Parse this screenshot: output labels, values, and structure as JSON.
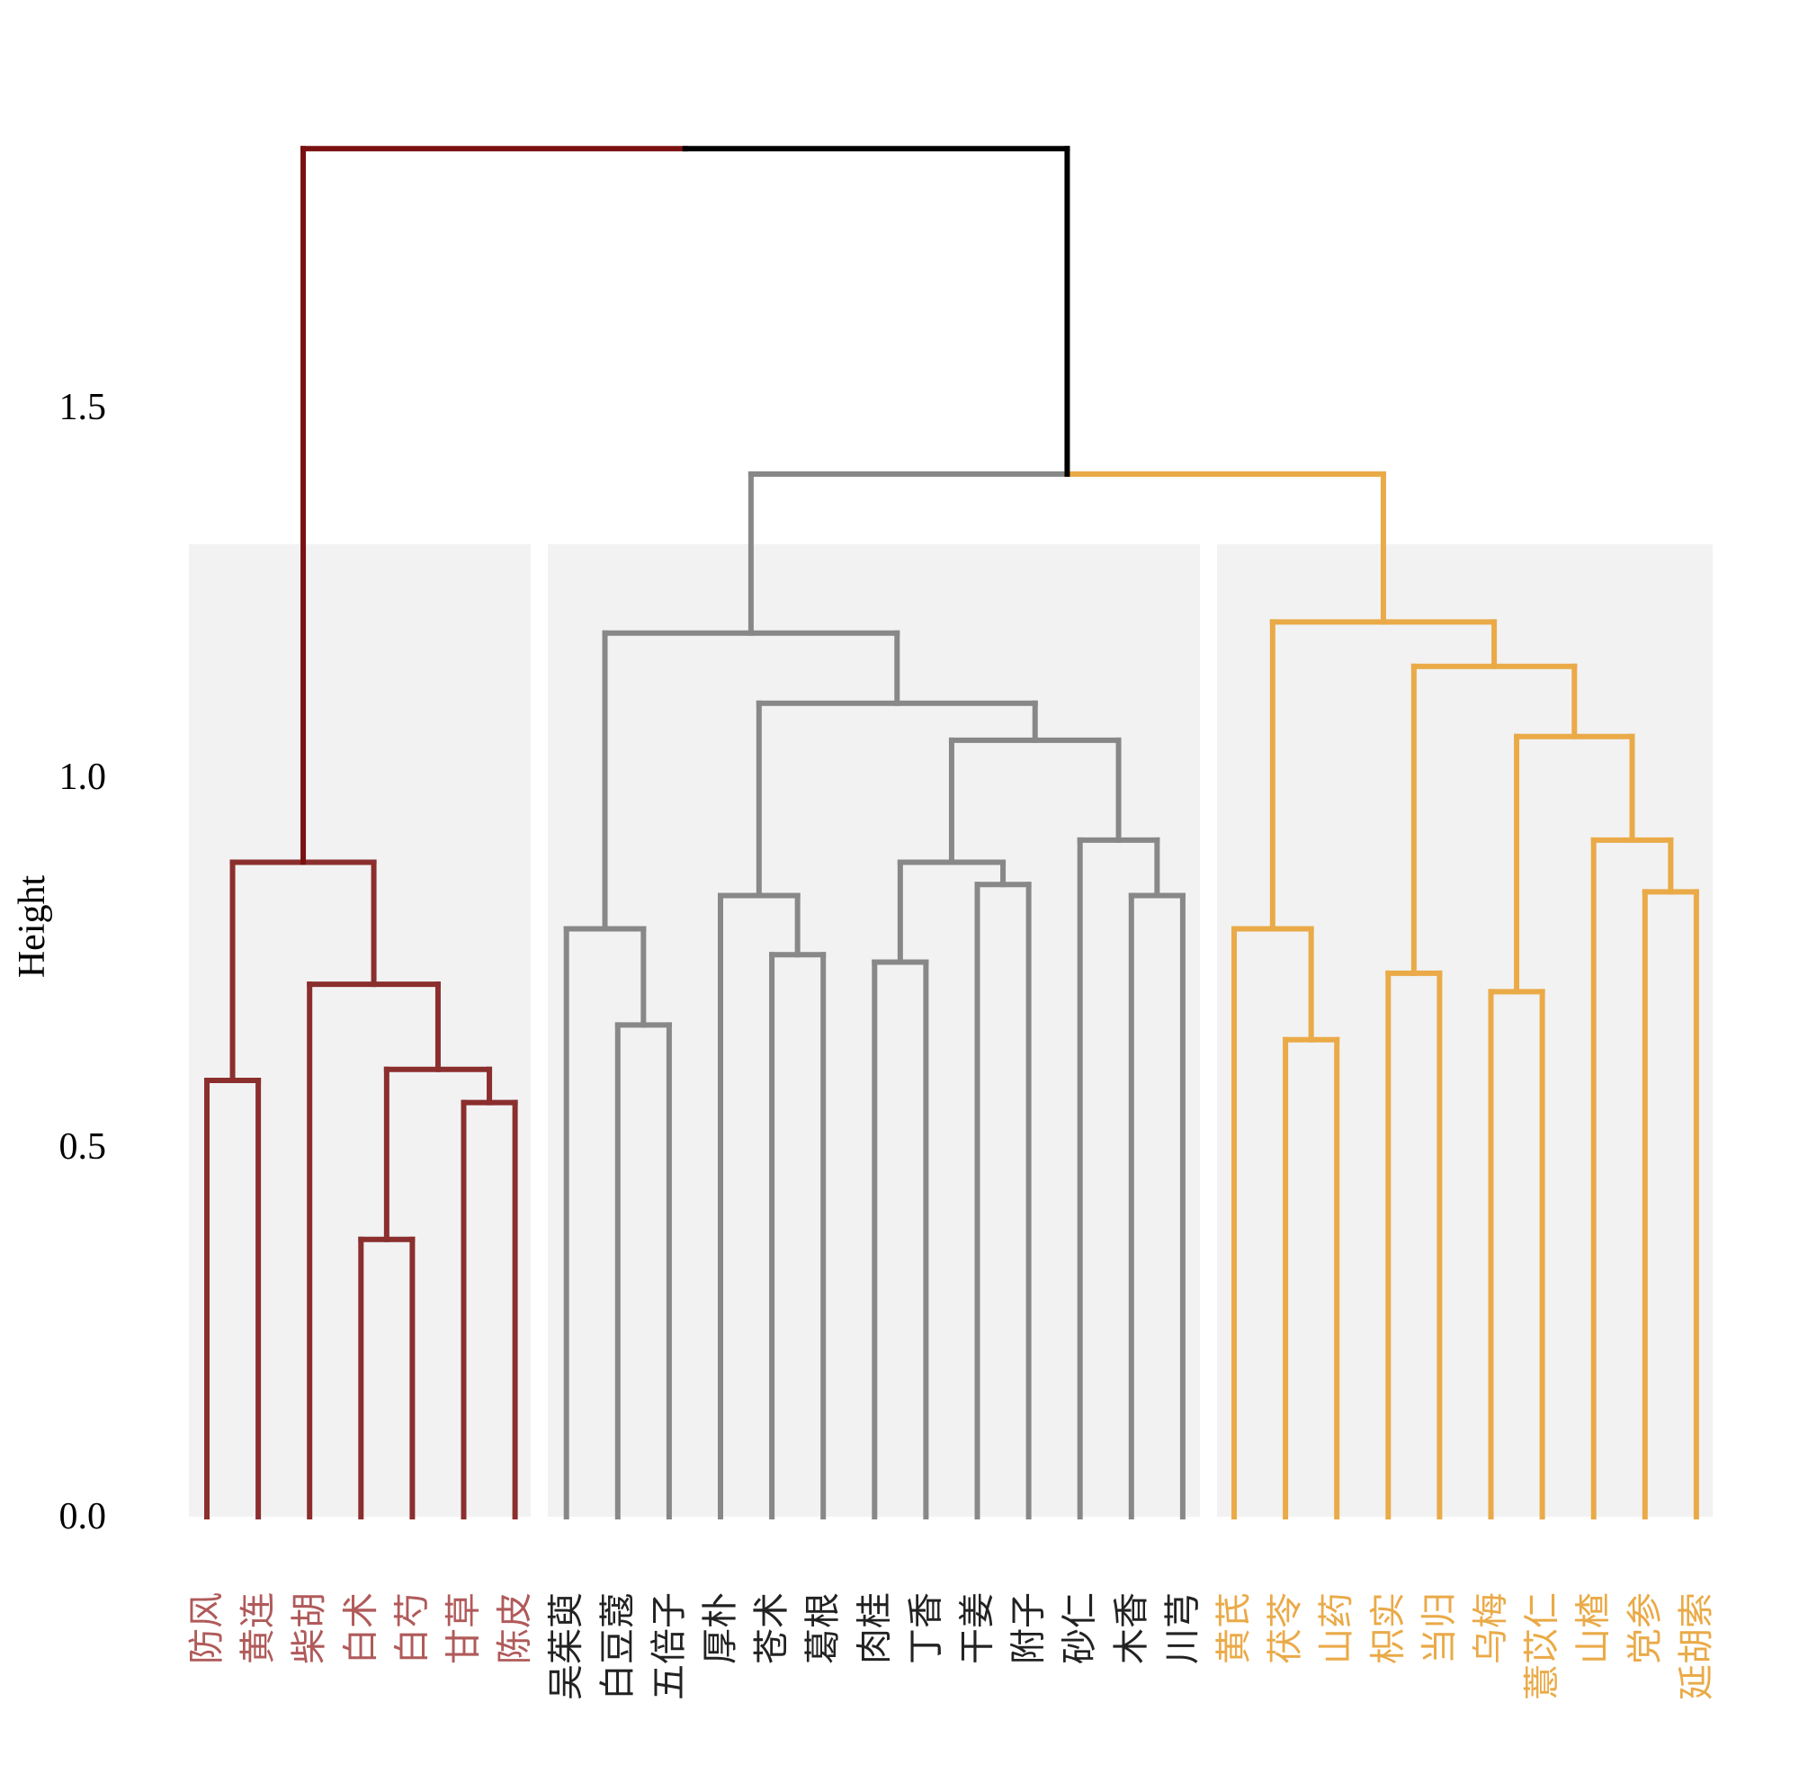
{
  "chart_data": {
    "type": "dendrogram",
    "title": "",
    "xlabel": "",
    "ylabel": "Height",
    "ylim": [
      0,
      1.8
    ],
    "yticks": [
      {
        "value": 0.0,
        "label": "0.0"
      },
      {
        "value": 0.5,
        "label": "0.5"
      },
      {
        "value": 1.0,
        "label": "1.0"
      },
      {
        "value": 1.5,
        "label": "1.5"
      }
    ],
    "colors": {
      "cluster1": "#8B2E2E",
      "cluster2": "#888888",
      "cluster3": "#EAAA48",
      "root_left": "#7A1010",
      "root_right": "#000000",
      "panel": "#F2F2F2",
      "label1": "#B05A5A",
      "label2": "#222222",
      "label3": "#EAAA48"
    },
    "leaves": [
      {
        "label": "防风",
        "cluster": 1
      },
      {
        "label": "黄连",
        "cluster": 1
      },
      {
        "label": "柴胡",
        "cluster": 1
      },
      {
        "label": "白术",
        "cluster": 1
      },
      {
        "label": "白芍",
        "cluster": 1
      },
      {
        "label": "甘草",
        "cluster": 1
      },
      {
        "label": "陈皮",
        "cluster": 1
      },
      {
        "label": "吴茱萸",
        "cluster": 2
      },
      {
        "label": "白豆蔻",
        "cluster": 2
      },
      {
        "label": "五倍子",
        "cluster": 2
      },
      {
        "label": "厚朴",
        "cluster": 2
      },
      {
        "label": "苍术",
        "cluster": 2
      },
      {
        "label": "葛根",
        "cluster": 2
      },
      {
        "label": "肉桂",
        "cluster": 2
      },
      {
        "label": "丁香",
        "cluster": 2
      },
      {
        "label": "干姜",
        "cluster": 2
      },
      {
        "label": "附子",
        "cluster": 2
      },
      {
        "label": "砂仁",
        "cluster": 2
      },
      {
        "label": "木香",
        "cluster": 2
      },
      {
        "label": "川芎",
        "cluster": 2
      },
      {
        "label": "黄芪",
        "cluster": 3
      },
      {
        "label": "茯苓",
        "cluster": 3
      },
      {
        "label": "山药",
        "cluster": 3
      },
      {
        "label": "枳实",
        "cluster": 3
      },
      {
        "label": "当归",
        "cluster": 3
      },
      {
        "label": "乌梅",
        "cluster": 3
      },
      {
        "label": "薏苡仁",
        "cluster": 3
      },
      {
        "label": "山楂",
        "cluster": 3
      },
      {
        "label": "党参",
        "cluster": 3
      },
      {
        "label": "延胡索",
        "cluster": 3
      }
    ],
    "merges": [
      {
        "left": 0,
        "right": 1,
        "height": 0.59,
        "cluster": 1
      },
      {
        "left": 3,
        "right": 4,
        "height": 0.375,
        "cluster": 1
      },
      {
        "left": 5,
        "right": 6,
        "height": 0.56,
        "cluster": 1
      },
      {
        "left": "m1",
        "right": "m2",
        "height": 0.605,
        "cluster": 1
      },
      {
        "left": 2,
        "right": "m3",
        "height": 0.72,
        "cluster": 1
      },
      {
        "left": "m0",
        "right": "m4",
        "height": 0.885,
        "cluster": 1
      },
      {
        "left": 8,
        "right": 9,
        "height": 0.665,
        "cluster": 2
      },
      {
        "left": 7,
        "right": "m6",
        "height": 0.795,
        "cluster": 2
      },
      {
        "left": 11,
        "right": 12,
        "height": 0.76,
        "cluster": 2
      },
      {
        "left": 10,
        "right": "m8",
        "height": 0.84,
        "cluster": 2
      },
      {
        "left": 13,
        "right": 14,
        "height": 0.75,
        "cluster": 2
      },
      {
        "left": 15,
        "right": 16,
        "height": 0.855,
        "cluster": 2
      },
      {
        "left": "m10",
        "right": "m11",
        "height": 0.885,
        "cluster": 2
      },
      {
        "left": 18,
        "right": 19,
        "height": 0.84,
        "cluster": 2
      },
      {
        "left": 17,
        "right": "m13",
        "height": 0.915,
        "cluster": 2
      },
      {
        "left": "m12",
        "right": "m14",
        "height": 1.05,
        "cluster": 2
      },
      {
        "left": "m9",
        "right": "m15",
        "height": 1.1,
        "cluster": 2
      },
      {
        "left": "m7",
        "right": "m16",
        "height": 1.195,
        "cluster": 2
      },
      {
        "left": 21,
        "right": 22,
        "height": 0.645,
        "cluster": 3
      },
      {
        "left": 20,
        "right": "m18",
        "height": 0.795,
        "cluster": 3
      },
      {
        "left": 23,
        "right": 24,
        "height": 0.735,
        "cluster": 3
      },
      {
        "left": 25,
        "right": 26,
        "height": 0.71,
        "cluster": 3
      },
      {
        "left": 28,
        "right": 29,
        "height": 0.845,
        "cluster": 3
      },
      {
        "left": 27,
        "right": "m22",
        "height": 0.915,
        "cluster": 3
      },
      {
        "left": "m21",
        "right": "m23",
        "height": 1.055,
        "cluster": 3
      },
      {
        "left": "m20",
        "right": "m24",
        "height": 1.15,
        "cluster": 3
      },
      {
        "left": "m19",
        "right": "m25",
        "height": 1.21,
        "cluster": 3
      },
      {
        "left": "m17",
        "right": "m26",
        "height": 1.41,
        "cluster": "mixed"
      },
      {
        "left": "m5",
        "right": "m27",
        "height": 1.85,
        "cluster": "root"
      }
    ]
  }
}
